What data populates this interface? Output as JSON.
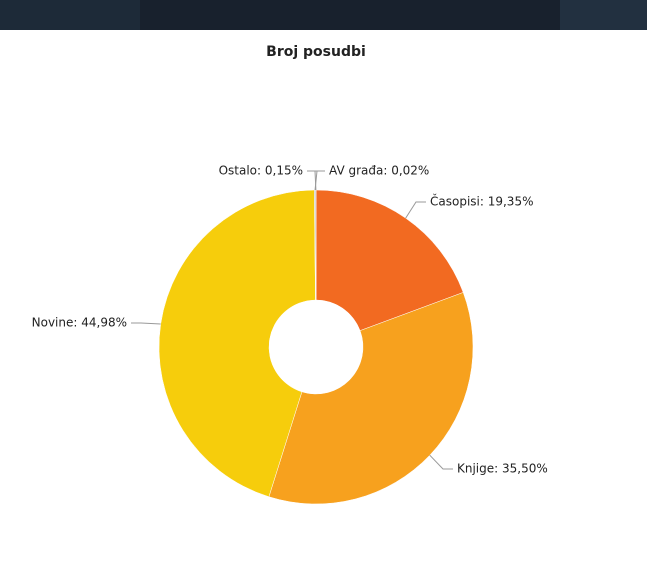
{
  "chart_data": {
    "type": "donut",
    "title": "Broj posudbi",
    "labels": [
      "Časopisi: 19,35%",
      "Knjige: 35,50%",
      "Novine: 44,98%",
      "Ostalo: 0,15%",
      "AV građa: 0,02%"
    ],
    "values": [
      19.35,
      35.5,
      44.98,
      0.15,
      0.02
    ],
    "colors": [
      "#f26a21",
      "#f7a11e",
      "#f6cd0c",
      "#b9b9b9",
      "#8a8a8a"
    ]
  }
}
